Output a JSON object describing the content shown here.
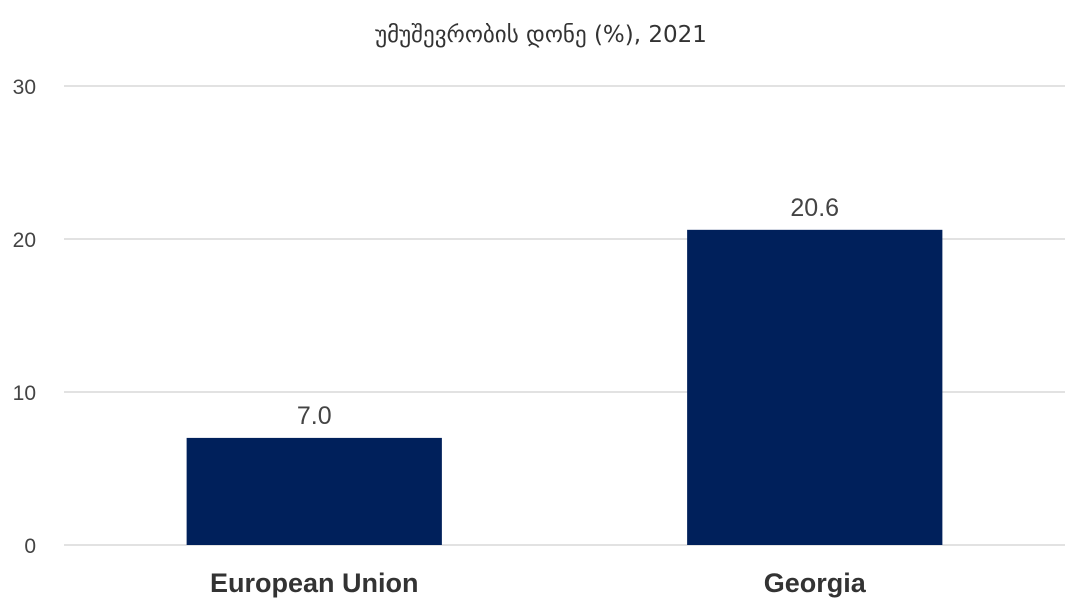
{
  "chart_data": {
    "type": "bar",
    "title": "უმუშევრობის დონე (%), 2021",
    "categories": [
      "European Union",
      "Georgia"
    ],
    "values": [
      7.0,
      20.6
    ],
    "data_labels": [
      "7.0",
      "20.6"
    ],
    "ylim": [
      0,
      30
    ],
    "yticks": [
      0,
      10,
      20,
      30
    ],
    "xlabel": "",
    "ylabel": "",
    "grid": true,
    "legend": "none",
    "bar_color": "#00205b",
    "grid_color": "#d9d9d9"
  }
}
